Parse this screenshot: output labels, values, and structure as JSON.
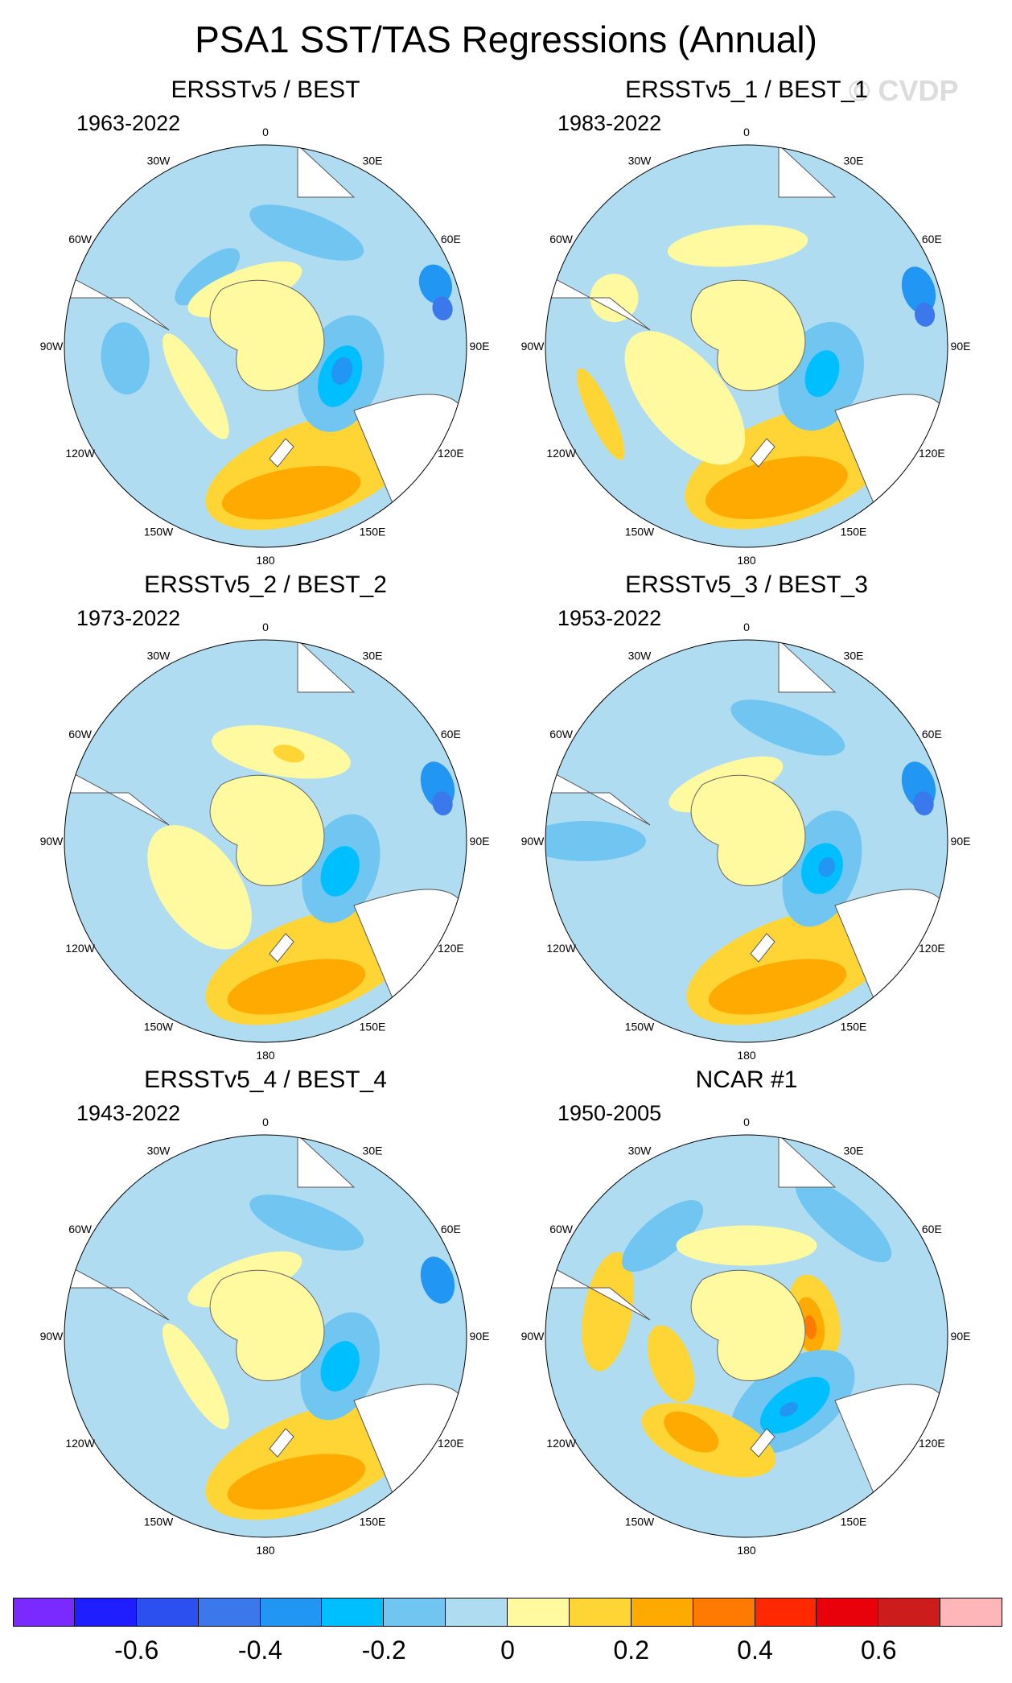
{
  "title": "PSA1 SST/TAS Regressions (Annual)",
  "watermark": "© CVDP",
  "lon_labels": [
    "0",
    "30E",
    "60E",
    "90E",
    "120E",
    "150E",
    "180",
    "150W",
    "120W",
    "90W",
    "60W",
    "30W"
  ],
  "colors": {
    "v_m07": "#7a29ff",
    "v_m06": "#1e1eff",
    "v_m05": "#2c4ff0",
    "v_m04": "#3a78ec",
    "v_m03": "#2196f3",
    "v_m02": "#00bfff",
    "v_m01": "#71c6f1",
    "v_m00": "#b0dcf2",
    "v_p00": "#fffaa0",
    "v_p01": "#ffd535",
    "v_p02": "#ffaa00",
    "v_p03": "#ff7a00",
    "v_p04": "#ff2800",
    "v_p05": "#e8000b",
    "v_p06": "#cc1c1c",
    "v_p07": "#ffb6b9",
    "land": "#ffffff"
  },
  "chart_data": {
    "type": "heatmap",
    "projection": "south polar stereographic",
    "colorbar": {
      "levels": [
        -0.7,
        -0.6,
        -0.5,
        -0.4,
        -0.3,
        -0.2,
        -0.1,
        0,
        0.1,
        0.2,
        0.3,
        0.4,
        0.5,
        0.6,
        0.7
      ],
      "tick_labels": [
        "-0.6",
        "-0.4",
        "-0.2",
        "0",
        "0.2",
        "0.4",
        "0.6"
      ],
      "tick_values": [
        -0.6,
        -0.4,
        -0.2,
        0,
        0.2,
        0.4,
        0.6
      ]
    },
    "panels": [
      {
        "name": "ERSSTv5 / BEST",
        "period": "1963-2022",
        "features": [
          {
            "lon": 160,
            "r": 0.66,
            "rx": 0.55,
            "ry": 0.24,
            "v": 0.15
          },
          {
            "lon": 170,
            "r": 0.74,
            "rx": 0.35,
            "ry": 0.12,
            "v": 0.25
          },
          {
            "lon": 110,
            "r": 0.4,
            "rx": 0.3,
            "ry": 0.2,
            "v": -0.15
          },
          {
            "lon": 112,
            "r": 0.4,
            "rx": 0.16,
            "ry": 0.1,
            "v": -0.25
          },
          {
            "lon": 108,
            "r": 0.4,
            "rx": 0.07,
            "ry": 0.05,
            "v": -0.35
          },
          {
            "lon": 70,
            "r": 0.9,
            "rx": 0.1,
            "ry": 0.08,
            "v": -0.35
          },
          {
            "lon": 78,
            "r": 0.9,
            "rx": 0.06,
            "ry": 0.05,
            "v": -0.45
          },
          {
            "lon": 20,
            "r": 0.6,
            "rx": 0.3,
            "ry": 0.1,
            "v": -0.15
          },
          {
            "lon": -40,
            "r": 0.45,
            "rx": 0.2,
            "ry": 0.08,
            "v": -0.15
          },
          {
            "lon": -95,
            "r": 0.7,
            "rx": 0.18,
            "ry": 0.12,
            "v": -0.15
          },
          {
            "lon": -20,
            "r": 0.3,
            "rx": 0.3,
            "ry": 0.1,
            "v": 0.05
          },
          {
            "lon": -120,
            "r": 0.4,
            "rx": 0.3,
            "ry": 0.08,
            "v": 0.05
          }
        ]
      },
      {
        "name": "ERSSTv5_1 / BEST_1",
        "period": "1983-2022",
        "features": [
          {
            "lon": 160,
            "r": 0.64,
            "rx": 0.55,
            "ry": 0.26,
            "v": 0.15
          },
          {
            "lon": 168,
            "r": 0.72,
            "rx": 0.36,
            "ry": 0.14,
            "v": 0.25
          },
          {
            "lon": 112,
            "r": 0.4,
            "rx": 0.28,
            "ry": 0.2,
            "v": -0.15
          },
          {
            "lon": 110,
            "r": 0.4,
            "rx": 0.12,
            "ry": 0.08,
            "v": -0.25
          },
          {
            "lon": 72,
            "r": 0.9,
            "rx": 0.12,
            "ry": 0.08,
            "v": -0.35
          },
          {
            "lon": 80,
            "r": 0.9,
            "rx": 0.06,
            "ry": 0.05,
            "v": -0.45
          },
          {
            "lon": -5,
            "r": 0.5,
            "rx": 0.35,
            "ry": 0.1,
            "v": 0.05
          },
          {
            "lon": -70,
            "r": 0.7,
            "rx": 0.12,
            "ry": 0.12,
            "v": 0.05
          },
          {
            "lon": -115,
            "r": 0.8,
            "rx": 0.25,
            "ry": 0.06,
            "v": 0.15
          },
          {
            "lon": -130,
            "r": 0.4,
            "rx": 0.4,
            "ry": 0.2,
            "v": 0.05
          }
        ]
      },
      {
        "name": "ERSSTv5_2 / BEST_2",
        "period": "1973-2022",
        "features": [
          {
            "lon": 160,
            "r": 0.66,
            "rx": 0.55,
            "ry": 0.24,
            "v": 0.15
          },
          {
            "lon": 168,
            "r": 0.74,
            "rx": 0.35,
            "ry": 0.12,
            "v": 0.25
          },
          {
            "lon": 110,
            "r": 0.4,
            "rx": 0.28,
            "ry": 0.18,
            "v": -0.15
          },
          {
            "lon": 112,
            "r": 0.4,
            "rx": 0.13,
            "ry": 0.09,
            "v": -0.25
          },
          {
            "lon": 72,
            "r": 0.9,
            "rx": 0.12,
            "ry": 0.08,
            "v": -0.35
          },
          {
            "lon": 78,
            "r": 0.9,
            "rx": 0.06,
            "ry": 0.05,
            "v": -0.45
          },
          {
            "lon": 10,
            "r": 0.45,
            "rx": 0.35,
            "ry": 0.12,
            "v": 0.05
          },
          {
            "lon": 15,
            "r": 0.45,
            "rx": 0.08,
            "ry": 0.04,
            "v": 0.15
          },
          {
            "lon": -125,
            "r": 0.4,
            "rx": 0.35,
            "ry": 0.2,
            "v": 0.05
          }
        ]
      },
      {
        "name": "ERSSTv5_3 / BEST_3",
        "period": "1953-2022",
        "features": [
          {
            "lon": 160,
            "r": 0.66,
            "rx": 0.55,
            "ry": 0.24,
            "v": 0.15
          },
          {
            "lon": 168,
            "r": 0.74,
            "rx": 0.35,
            "ry": 0.12,
            "v": 0.25
          },
          {
            "lon": 110,
            "r": 0.4,
            "rx": 0.3,
            "ry": 0.18,
            "v": -0.15
          },
          {
            "lon": 110,
            "r": 0.4,
            "rx": 0.13,
            "ry": 0.1,
            "v": -0.25
          },
          {
            "lon": 108,
            "r": 0.42,
            "rx": 0.05,
            "ry": 0.04,
            "v": -0.35
          },
          {
            "lon": 72,
            "r": 0.9,
            "rx": 0.12,
            "ry": 0.08,
            "v": -0.35
          },
          {
            "lon": 78,
            "r": 0.9,
            "rx": 0.06,
            "ry": 0.05,
            "v": -0.45
          },
          {
            "lon": 20,
            "r": 0.6,
            "rx": 0.3,
            "ry": 0.1,
            "v": -0.15
          },
          {
            "lon": -90,
            "r": 0.8,
            "rx": 0.1,
            "ry": 0.3,
            "v": -0.15
          },
          {
            "lon": -20,
            "r": 0.3,
            "rx": 0.3,
            "ry": 0.1,
            "v": 0.05
          }
        ]
      },
      {
        "name": "ERSSTv5_4 / BEST_4",
        "period": "1943-2022",
        "features": [
          {
            "lon": 160,
            "r": 0.66,
            "rx": 0.55,
            "ry": 0.24,
            "v": 0.15
          },
          {
            "lon": 168,
            "r": 0.74,
            "rx": 0.35,
            "ry": 0.12,
            "v": 0.25
          },
          {
            "lon": 112,
            "r": 0.4,
            "rx": 0.28,
            "ry": 0.18,
            "v": -0.15
          },
          {
            "lon": 112,
            "r": 0.4,
            "rx": 0.13,
            "ry": 0.09,
            "v": -0.25
          },
          {
            "lon": 72,
            "r": 0.9,
            "rx": 0.12,
            "ry": 0.08,
            "v": -0.35
          },
          {
            "lon": 20,
            "r": 0.6,
            "rx": 0.3,
            "ry": 0.1,
            "v": -0.15
          },
          {
            "lon": -20,
            "r": 0.3,
            "rx": 0.3,
            "ry": 0.1,
            "v": 0.05
          },
          {
            "lon": -120,
            "r": 0.4,
            "rx": 0.3,
            "ry": 0.08,
            "v": 0.05
          }
        ]
      },
      {
        "name": "NCAR #1",
        "period": "1950-2005",
        "features": [
          {
            "lon": 75,
            "r": 0.35,
            "rx": 0.22,
            "ry": 0.12,
            "v": 0.15
          },
          {
            "lon": 80,
            "r": 0.32,
            "rx": 0.14,
            "ry": 0.07,
            "v": 0.25
          },
          {
            "lon": 82,
            "r": 0.32,
            "rx": 0.06,
            "ry": 0.03,
            "v": 0.35
          },
          {
            "lon": 145,
            "r": 0.4,
            "rx": 0.35,
            "ry": 0.2,
            "v": -0.15
          },
          {
            "lon": 145,
            "r": 0.42,
            "rx": 0.2,
            "ry": 0.1,
            "v": -0.25
          },
          {
            "lon": 150,
            "r": 0.42,
            "rx": 0.05,
            "ry": 0.03,
            "v": -0.35
          },
          {
            "lon": -160,
            "r": 0.55,
            "rx": 0.35,
            "ry": 0.15,
            "v": 0.15
          },
          {
            "lon": -150,
            "r": 0.55,
            "rx": 0.15,
            "ry": 0.08,
            "v": 0.25
          },
          {
            "lon": -80,
            "r": 0.7,
            "rx": 0.3,
            "ry": 0.12,
            "v": 0.15
          },
          {
            "lon": -40,
            "r": 0.65,
            "rx": 0.25,
            "ry": 0.1,
            "v": -0.15
          },
          {
            "lon": 0,
            "r": 0.45,
            "rx": 0.35,
            "ry": 0.1,
            "v": 0.05
          },
          {
            "lon": 40,
            "r": 0.75,
            "rx": 0.3,
            "ry": 0.1,
            "v": -0.15
          },
          {
            "lon": -110,
            "r": 0.4,
            "rx": 0.2,
            "ry": 0.1,
            "v": 0.15
          }
        ]
      }
    ]
  }
}
